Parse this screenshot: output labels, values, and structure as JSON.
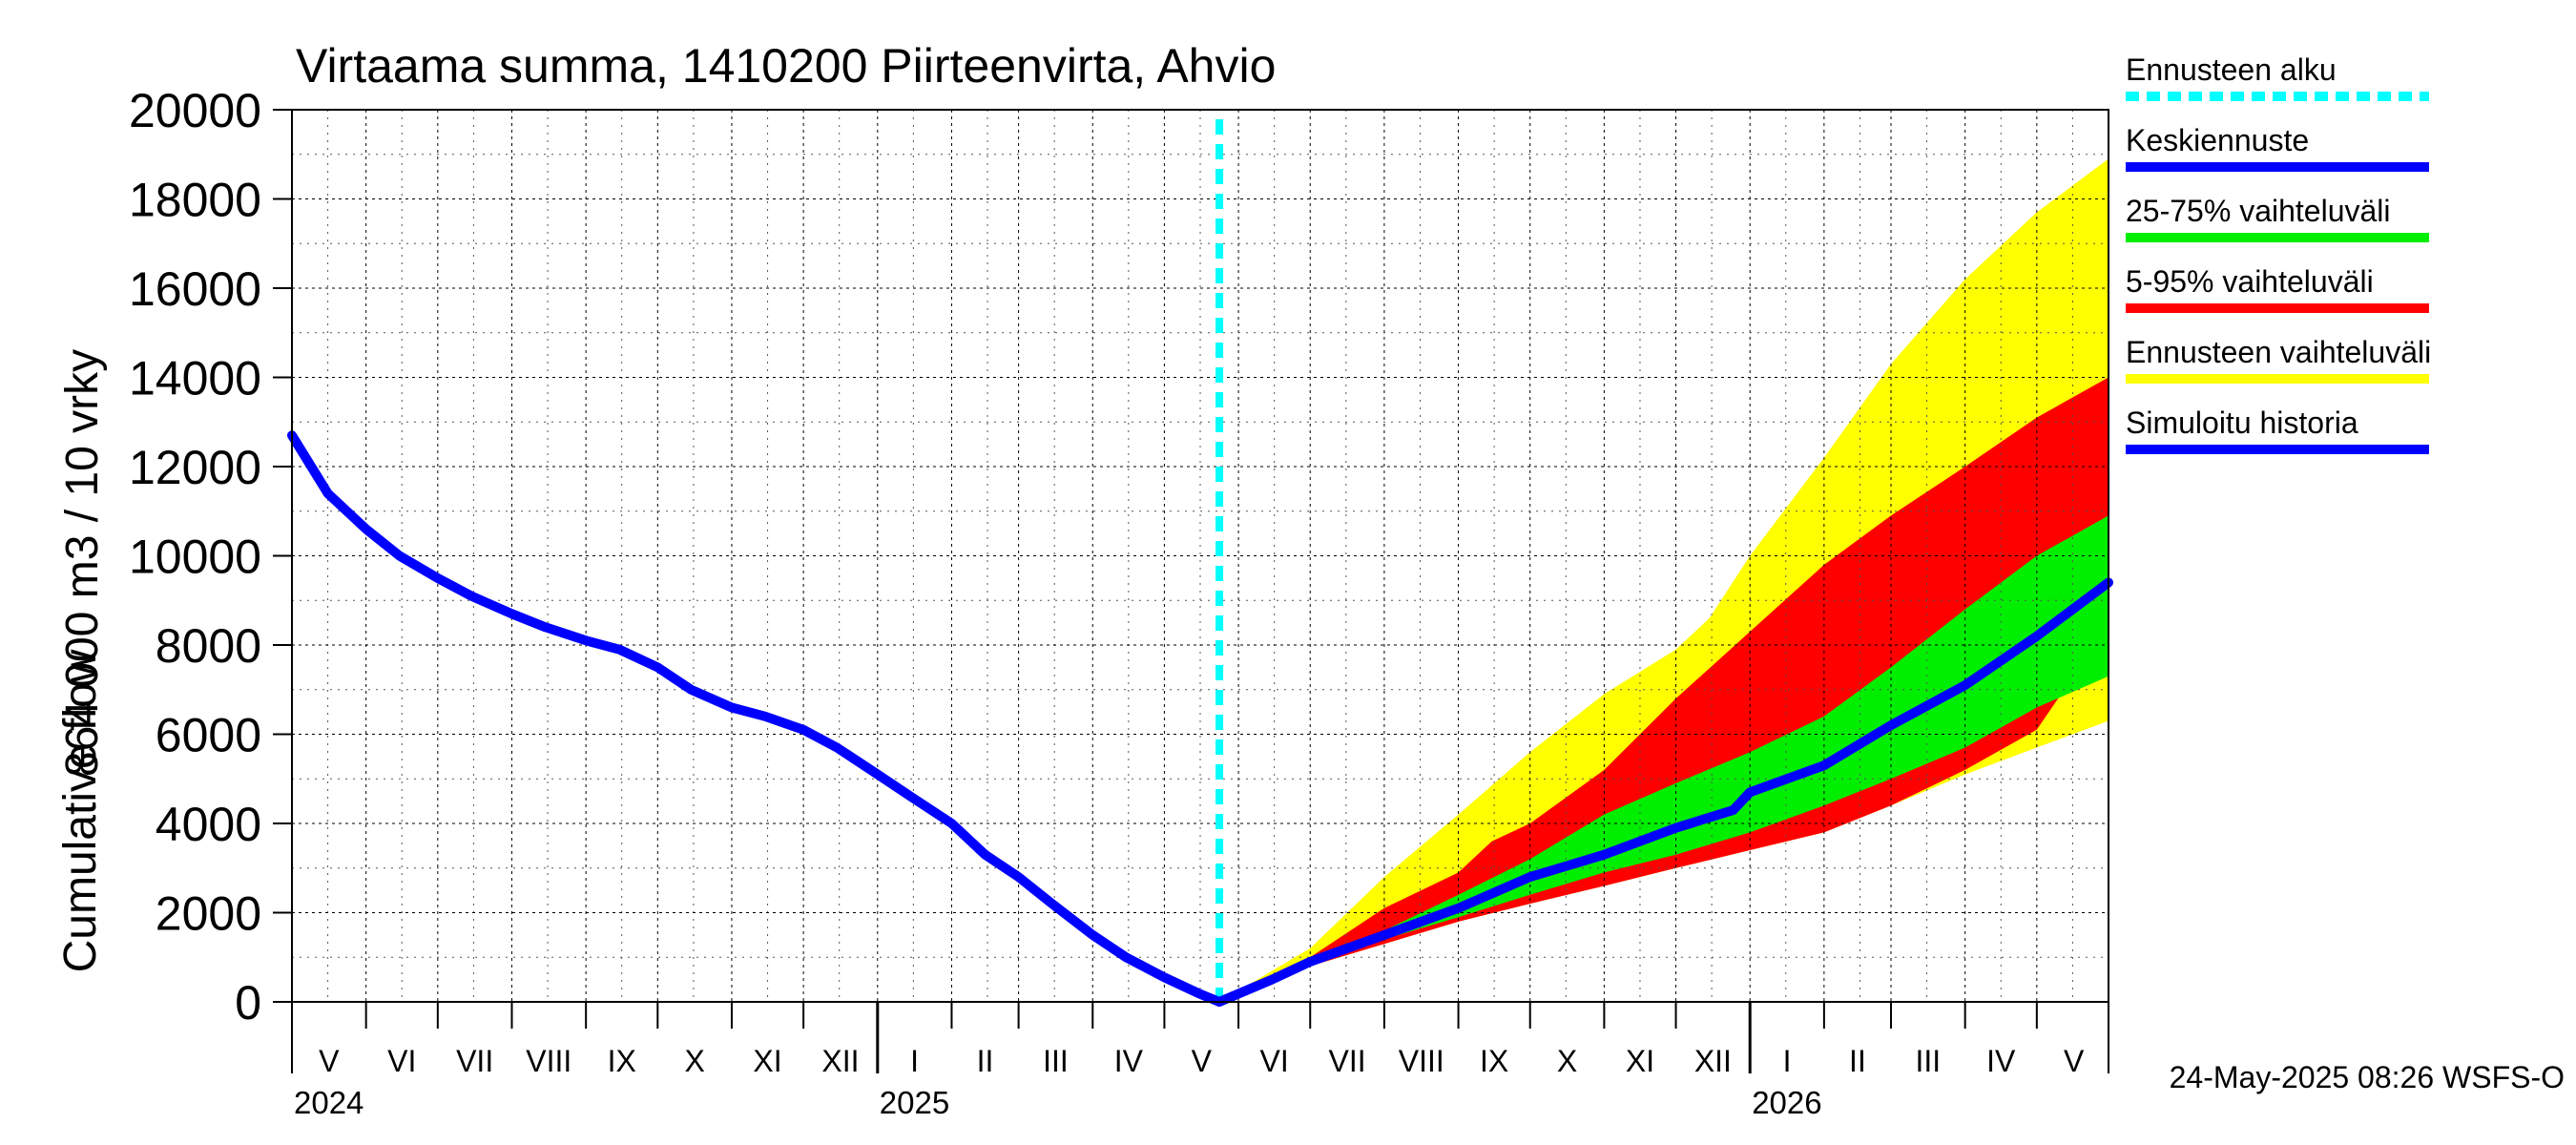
{
  "chart_data": {
    "type": "area",
    "title": "Virtaama summa, 1410200 Piirteenvirta, Ahvio",
    "ylabel_lines": [
      "864 000 m3 / 10 vrky",
      "Cumulative flow"
    ],
    "ylim": [
      0,
      20000
    ],
    "yticks": [
      "0",
      "2000",
      "4000",
      "6000",
      "8000",
      "10000",
      "12000",
      "14000",
      "16000",
      "18000",
      "20000"
    ],
    "grid": true,
    "x_start": "2024-05-01",
    "x_end": "2026-05-31",
    "month_labels": [
      "V",
      "VI",
      "VII",
      "VIII",
      "IX",
      "X",
      "XI",
      "XII",
      "I",
      "II",
      "III",
      "IV",
      "V",
      "VI",
      "VII",
      "VIII",
      "IX",
      "X",
      "XI",
      "XII",
      "I",
      "II",
      "III",
      "IV",
      "V"
    ],
    "year_labels": [
      {
        "label": "2024",
        "date": "2024-05-01"
      },
      {
        "label": "2025",
        "date": "2025-01-01"
      },
      {
        "label": "2026",
        "date": "2026-01-01"
      }
    ],
    "forecast_start": "2025-05-24",
    "series": [
      {
        "name": "Simuloitu historia",
        "color": "#0000ff",
        "points": [
          [
            "2024-05-01",
            12700
          ],
          [
            "2024-05-16",
            11400
          ],
          [
            "2024-06-01",
            10600
          ],
          [
            "2024-06-15",
            10000
          ],
          [
            "2024-07-01",
            9500
          ],
          [
            "2024-07-15",
            9100
          ],
          [
            "2024-08-01",
            8700
          ],
          [
            "2024-08-15",
            8400
          ],
          [
            "2024-09-01",
            8100
          ],
          [
            "2024-09-15",
            7900
          ],
          [
            "2024-10-01",
            7500
          ],
          [
            "2024-10-15",
            7000
          ],
          [
            "2024-11-01",
            6600
          ],
          [
            "2024-11-15",
            6400
          ],
          [
            "2024-12-01",
            6100
          ],
          [
            "2024-12-15",
            5700
          ],
          [
            "2025-01-01",
            5100
          ],
          [
            "2025-01-15",
            4600
          ],
          [
            "2025-02-01",
            4000
          ],
          [
            "2025-02-15",
            3300
          ],
          [
            "2025-03-01",
            2800
          ],
          [
            "2025-03-15",
            2200
          ],
          [
            "2025-04-01",
            1500
          ],
          [
            "2025-04-15",
            1000
          ],
          [
            "2025-05-01",
            550
          ],
          [
            "2025-05-15",
            200
          ],
          [
            "2025-05-24",
            0
          ]
        ]
      },
      {
        "name": "Keskiennuste",
        "color": "#0000ff",
        "points": [
          [
            "2025-05-24",
            0
          ],
          [
            "2025-06-15",
            500
          ],
          [
            "2025-07-01",
            900
          ],
          [
            "2025-08-01",
            1500
          ],
          [
            "2025-09-01",
            2100
          ],
          [
            "2025-10-01",
            2800
          ],
          [
            "2025-11-01",
            3300
          ],
          [
            "2025-12-01",
            3900
          ],
          [
            "2025-12-25",
            4300
          ],
          [
            "2026-01-01",
            4700
          ],
          [
            "2026-02-01",
            5300
          ],
          [
            "2026-03-01",
            6200
          ],
          [
            "2026-04-01",
            7100
          ],
          [
            "2026-05-01",
            8200
          ],
          [
            "2026-05-31",
            9400
          ]
        ]
      }
    ],
    "bands": [
      {
        "name": "Ennusteen vaihteluväli",
        "color": "#ffff00",
        "upper": [
          [
            "2025-05-24",
            0
          ],
          [
            "2025-07-01",
            1200
          ],
          [
            "2025-08-01",
            2800
          ],
          [
            "2025-09-01",
            4200
          ],
          [
            "2025-10-01",
            5600
          ],
          [
            "2025-11-01",
            6900
          ],
          [
            "2025-12-01",
            7900
          ],
          [
            "2025-12-15",
            8600
          ],
          [
            "2026-01-01",
            10000
          ],
          [
            "2026-02-01",
            12200
          ],
          [
            "2026-03-01",
            14300
          ],
          [
            "2026-04-01",
            16200
          ],
          [
            "2026-05-01",
            17700
          ],
          [
            "2026-05-31",
            18900
          ]
        ],
        "lower": [
          [
            "2025-05-24",
            0
          ],
          [
            "2025-07-01",
            800
          ],
          [
            "2025-08-01",
            1300
          ],
          [
            "2025-09-01",
            1800
          ],
          [
            "2025-10-01",
            2200
          ],
          [
            "2025-11-01",
            2600
          ],
          [
            "2025-12-01",
            3000
          ],
          [
            "2026-01-01",
            3400
          ],
          [
            "2026-02-01",
            3800
          ],
          [
            "2026-03-01",
            4400
          ],
          [
            "2026-04-01",
            5100
          ],
          [
            "2026-05-01",
            5700
          ],
          [
            "2026-05-31",
            6300
          ]
        ]
      },
      {
        "name": "5-95% vaihteluväli",
        "color": "#ff0000",
        "upper": [
          [
            "2025-05-24",
            0
          ],
          [
            "2025-07-01",
            1000
          ],
          [
            "2025-08-01",
            2100
          ],
          [
            "2025-09-01",
            2900
          ],
          [
            "2025-09-15",
            3600
          ],
          [
            "2025-10-01",
            4000
          ],
          [
            "2025-11-01",
            5200
          ],
          [
            "2025-12-01",
            6800
          ],
          [
            "2026-01-01",
            8300
          ],
          [
            "2026-02-01",
            9800
          ],
          [
            "2026-03-01",
            10900
          ],
          [
            "2026-04-01",
            12000
          ],
          [
            "2026-05-01",
            13100
          ],
          [
            "2026-05-31",
            14000
          ]
        ],
        "lower": [
          [
            "2025-05-24",
            0
          ],
          [
            "2025-07-01",
            800
          ],
          [
            "2025-08-01",
            1300
          ],
          [
            "2025-09-01",
            1800
          ],
          [
            "2025-10-01",
            2200
          ],
          [
            "2025-11-01",
            2600
          ],
          [
            "2025-12-01",
            3000
          ],
          [
            "2026-01-01",
            3400
          ],
          [
            "2026-02-01",
            3800
          ],
          [
            "2026-03-01",
            4400
          ],
          [
            "2026-04-01",
            5200
          ],
          [
            "2026-05-01",
            6100
          ],
          [
            "2026-05-15",
            7200
          ],
          [
            "2026-05-31",
            7800
          ]
        ]
      },
      {
        "name": "25-75% vaihteluväli",
        "color": "#00ee00",
        "upper": [
          [
            "2025-05-24",
            0
          ],
          [
            "2025-07-01",
            900
          ],
          [
            "2025-08-01",
            1600
          ],
          [
            "2025-09-01",
            2400
          ],
          [
            "2025-10-01",
            3200
          ],
          [
            "2025-11-01",
            4200
          ],
          [
            "2025-12-01",
            4900
          ],
          [
            "2026-01-01",
            5600
          ],
          [
            "2026-02-01",
            6400
          ],
          [
            "2026-03-01",
            7500
          ],
          [
            "2026-04-01",
            8800
          ],
          [
            "2026-05-01",
            10000
          ],
          [
            "2026-05-31",
            10900
          ]
        ],
        "lower": [
          [
            "2025-05-24",
            0
          ],
          [
            "2025-07-01",
            850
          ],
          [
            "2025-08-01",
            1400
          ],
          [
            "2025-09-01",
            1900
          ],
          [
            "2025-10-01",
            2400
          ],
          [
            "2025-11-01",
            2900
          ],
          [
            "2025-12-01",
            3300
          ],
          [
            "2026-01-01",
            3800
          ],
          [
            "2026-02-01",
            4400
          ],
          [
            "2026-03-01",
            5000
          ],
          [
            "2026-04-01",
            5700
          ],
          [
            "2026-05-01",
            6600
          ],
          [
            "2026-05-31",
            7300
          ]
        ]
      }
    ]
  },
  "legend": {
    "items": [
      {
        "label": "Ennusteen alku",
        "color": "#00ffff",
        "style": "dashed"
      },
      {
        "label": "Keskiennuste",
        "color": "#0000ff",
        "style": "solid"
      },
      {
        "label": "25-75% vaihteluväli",
        "color": "#00ee00",
        "style": "solid"
      },
      {
        "label": "5-95% vaihteluväli",
        "color": "#ff0000",
        "style": "solid"
      },
      {
        "label": "Ennusteen vaihteluväli",
        "color": "#ffff00",
        "style": "solid"
      },
      {
        "label": "Simuloitu historia",
        "color": "#0000ff",
        "style": "solid"
      }
    ]
  },
  "footer": {
    "timestamp": "24-May-2025 08:26 WSFS-O"
  }
}
